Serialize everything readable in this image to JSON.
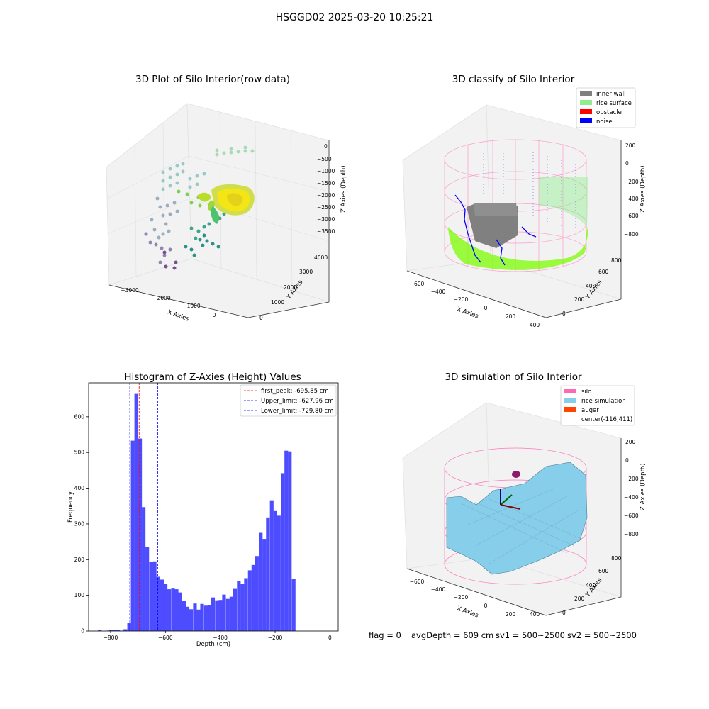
{
  "suptitle": "HSGGD02 2025-03-20 10:25:21",
  "footer": {
    "flag": "flag = 0",
    "avg_depth": "avgDepth = 609 cm",
    "sv1": "sv1 = 500~2500",
    "sv2": "sv2 = 500~2500"
  },
  "colors": {
    "histogram_bar": "#4d4dff",
    "first_peak_line": "#ff0000",
    "limit_line": "#0000ff",
    "inner_wall": "#808080",
    "rice_surface": "#90ee90",
    "obstacle": "#ff0000",
    "noise": "#0000ff",
    "silo": "#ff69b4",
    "rice_simulation": "#87ceeb",
    "auger": "#ff4500"
  },
  "chart_data": [
    {
      "type": "scatter",
      "subtype": "3d",
      "title": "3D Plot of Silo Interior(row data)",
      "xlabel": "X Axies",
      "ylabel": "Y Axies",
      "zlabel": "Z Axies (Depth)",
      "x_ticks": [
        "−3000",
        "−2000",
        "−1000",
        "0"
      ],
      "y_ticks": [
        "0",
        "1000",
        "2000",
        "3000",
        "4000"
      ],
      "z_ticks": [
        "0",
        "−500",
        "−1000",
        "−1500",
        "−2000",
        "−2500",
        "−3000",
        "−3500"
      ],
      "colormap": "viridis"
    },
    {
      "type": "scatter",
      "subtype": "3d",
      "title": "3D classify of Silo Interior",
      "xlabel": "X Axies",
      "ylabel": "Y Axies",
      "zlabel": "Z Axies (Depth)",
      "x_ticks": [
        "−600",
        "−400",
        "−200",
        "0",
        "200",
        "400"
      ],
      "y_ticks": [
        "0",
        "200",
        "400",
        "600",
        "800"
      ],
      "z_ticks": [
        "200",
        "0",
        "−200",
        "−400",
        "−600",
        "−800"
      ],
      "legend": [
        "inner wall",
        "rice surface",
        "obstacle",
        "noise"
      ],
      "legend_position": "top-right"
    },
    {
      "type": "bar",
      "subtype": "histogram",
      "title": "Histogram of Z-Axies (Height) Values",
      "xlabel": "Depth (cm)",
      "ylabel": "Frequency",
      "xlim": [
        -880,
        30
      ],
      "ylim": [
        0,
        695
      ],
      "x_ticks": [
        -800,
        -600,
        -400,
        -200,
        0
      ],
      "x_tick_labels": [
        "−800",
        "−600",
        "−400",
        "−200",
        "0"
      ],
      "y_ticks": [
        0,
        100,
        200,
        300,
        400,
        500,
        600
      ],
      "bin_width": 13.3,
      "bins_start": [
        -846,
        -833,
        -819,
        -806,
        -793,
        -779,
        -766,
        -753,
        -739,
        -726,
        -713,
        -699,
        -686,
        -673,
        -659,
        -646,
        -633,
        -619,
        -606,
        -593,
        -579,
        -566,
        -553,
        -539,
        -526,
        -513,
        -499,
        -486,
        -473,
        -459,
        -446,
        -433,
        -419,
        -406,
        -393,
        -379,
        -366,
        -353,
        -339,
        -326,
        -313,
        -299,
        -286,
        -273,
        -259,
        -246,
        -233,
        -219,
        -206,
        -193,
        -179,
        -166,
        -153,
        -139,
        -126,
        -113,
        -99,
        -86,
        -73,
        -59,
        -46,
        -33,
        -19,
        -6
      ],
      "values": [
        2,
        0,
        1,
        2,
        2,
        2,
        1,
        5,
        22,
        533,
        664,
        539,
        347,
        236,
        194,
        195,
        152,
        144,
        132,
        117,
        119,
        117,
        108,
        85,
        68,
        61,
        77,
        60,
        76,
        71,
        72,
        94,
        86,
        87,
        102,
        90,
        96,
        118,
        140,
        132,
        148,
        170,
        185,
        210,
        275,
        258,
        318,
        366,
        336,
        323,
        442,
        505,
        503,
        146,
        0,
        0,
        0,
        0,
        0,
        0,
        0,
        0,
        0,
        0
      ],
      "vlines": [
        {
          "label": "first_peak: -695.85 cm",
          "x": -695.85,
          "style": "dashed",
          "color": "red"
        },
        {
          "label": "Upper_limit: -627.96 cm",
          "x": -627.96,
          "style": "dashed",
          "color": "blue"
        },
        {
          "label": "Lower_limit: -729.80 cm",
          "x": -729.8,
          "style": "dashed",
          "color": "blue"
        }
      ],
      "legend_position": "top-right"
    },
    {
      "type": "surface",
      "subtype": "3d",
      "title": "3D simulation of Silo Interior",
      "xlabel": "X Axies",
      "ylabel": "Y Axies",
      "zlabel": "Z Axies (Depth)",
      "x_ticks": [
        "−600",
        "−400",
        "−200",
        "0",
        "200",
        "400"
      ],
      "y_ticks": [
        "0",
        "200",
        "400",
        "600",
        "800"
      ],
      "z_ticks": [
        "200",
        "0",
        "−200",
        "−400",
        "−600",
        "−800"
      ],
      "legend": [
        "silo",
        "rice simulation",
        "auger",
        "center(-116,411)"
      ],
      "legend_position": "top-right"
    }
  ]
}
